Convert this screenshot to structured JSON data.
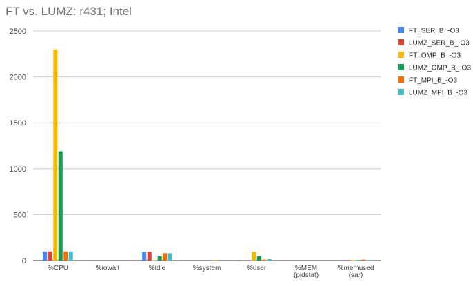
{
  "chart_data": {
    "type": "bar",
    "title": "FT vs. LUMZ: r431; Intel",
    "xlabel": "",
    "ylabel": "",
    "ylim": [
      0,
      2500
    ],
    "yticks": [
      0,
      500,
      1000,
      1500,
      2000,
      2500
    ],
    "grid": true,
    "legend_position": "right",
    "categories": [
      [
        "%CPU"
      ],
      [
        "%iowait"
      ],
      [
        "%idle"
      ],
      [
        "%system"
      ],
      [
        "%user"
      ],
      [
        "%MEM",
        "(pidstat)"
      ],
      [
        "%memused",
        "(sar)"
      ]
    ],
    "series": [
      {
        "name": "FT_SER_B_-O3",
        "color": "#4285f4",
        "values": [
          99,
          0,
          95,
          0,
          1,
          0,
          6
        ]
      },
      {
        "name": "LUMZ_SER_B_-O3",
        "color": "#db4437",
        "values": [
          99,
          0,
          95,
          0,
          1,
          0,
          6
        ]
      },
      {
        "name": "FT_OMP_B_-O3",
        "color": "#f4b400",
        "values": [
          2300,
          0,
          3,
          0,
          95,
          0,
          5
        ]
      },
      {
        "name": "LUMZ_OMP_B_-O3",
        "color": "#0f9d58",
        "values": [
          1190,
          0,
          45,
          0,
          48,
          0,
          5
        ]
      },
      {
        "name": "FT_MPI_B_-O3",
        "color": "#ff6d00",
        "values": [
          99,
          0,
          80,
          5,
          10,
          0,
          10
        ]
      },
      {
        "name": "LUMZ_MPI_B_-O3",
        "color": "#46bdc6",
        "values": [
          99,
          0,
          80,
          0,
          15,
          0,
          6
        ]
      }
    ]
  }
}
